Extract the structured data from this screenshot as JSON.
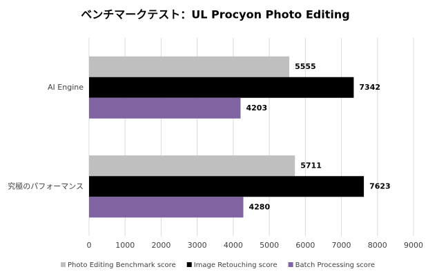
{
  "chart_data": {
    "type": "hbar",
    "title": "ベンチマークテスト：UL Procyon Photo Editing",
    "categories": [
      "AI Engine",
      "究極のパフォーマンス"
    ],
    "series": [
      {
        "name": "Photo Editing Benchmark score",
        "color": "#bfbfbf",
        "values": [
          5555,
          5711
        ]
      },
      {
        "name": "Image Retouching score",
        "color": "#000000",
        "values": [
          7342,
          7623
        ]
      },
      {
        "name": "Batch Processing score",
        "color": "#8064a2",
        "values": [
          4203,
          4280
        ]
      }
    ],
    "xlim": [
      0,
      9000
    ],
    "xticks": [
      0,
      1000,
      2000,
      3000,
      4000,
      5000,
      6000,
      7000,
      8000,
      9000
    ],
    "grid": true,
    "legend": "bottom"
  }
}
